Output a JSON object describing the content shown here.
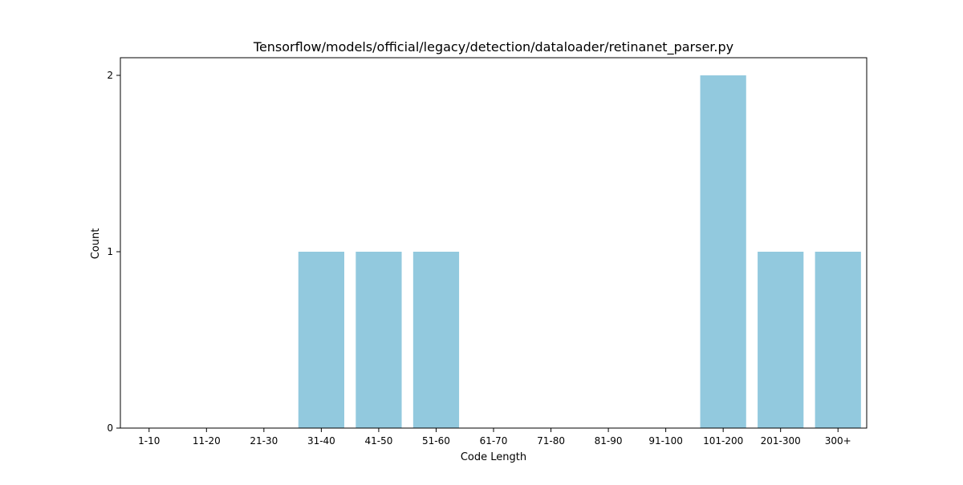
{
  "chart_data": {
    "type": "bar",
    "title": "Tensorflow/models/official/legacy/detection/dataloader/retinanet_parser.py",
    "xlabel": "Code Length",
    "ylabel": "Count",
    "categories": [
      "1-10",
      "11-20",
      "21-30",
      "31-40",
      "41-50",
      "51-60",
      "61-70",
      "71-80",
      "81-90",
      "91-100",
      "101-200",
      "201-300",
      "300+"
    ],
    "values": [
      0,
      0,
      0,
      1,
      1,
      1,
      0,
      0,
      0,
      0,
      2,
      1,
      1
    ],
    "yticks": [
      "0",
      "1",
      "2"
    ],
    "ylim": [
      0,
      2.1
    ],
    "grid": false,
    "bar_color": "#92c9de"
  }
}
